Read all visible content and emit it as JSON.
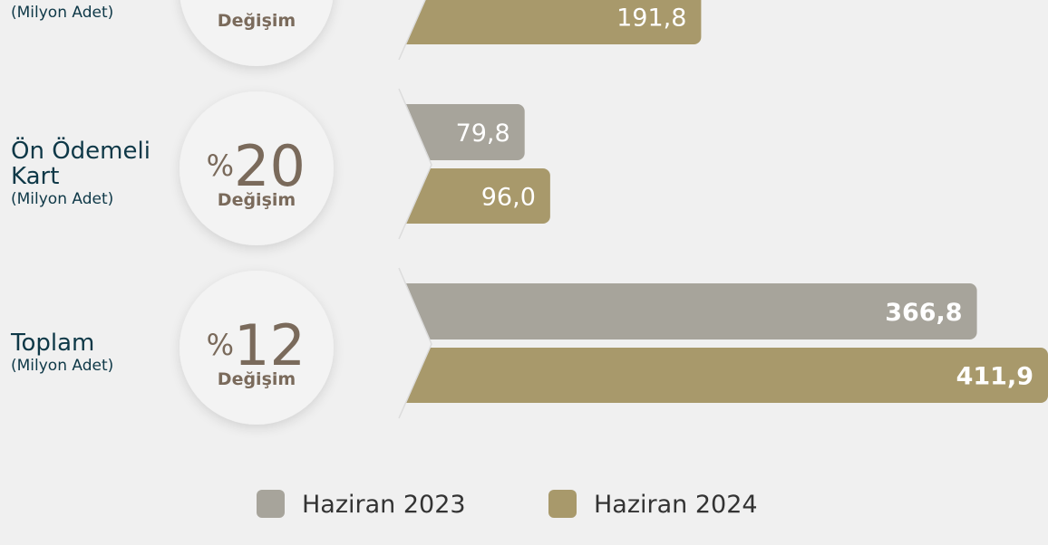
{
  "chart_data": {
    "type": "bar",
    "categories": [
      null,
      "Ön Ödemeli Kart",
      "Toplam"
    ],
    "unit_label": "(Milyon Adet)",
    "change_prefix": "%",
    "change_label": "Değişim",
    "changes": [
      null,
      20,
      12
    ],
    "series": [
      {
        "name": "Haziran 2023",
        "color": "#a7a49b",
        "values": [
          null,
          79.8,
          366.8
        ],
        "value_labels": [
          null,
          "79,8",
          "366,8"
        ]
      },
      {
        "name": "Haziran 2024",
        "color": "#a8996b",
        "values": [
          191.8,
          96.0,
          411.9
        ],
        "value_labels": [
          "191,8",
          "96,0",
          "411,9"
        ]
      }
    ]
  }
}
